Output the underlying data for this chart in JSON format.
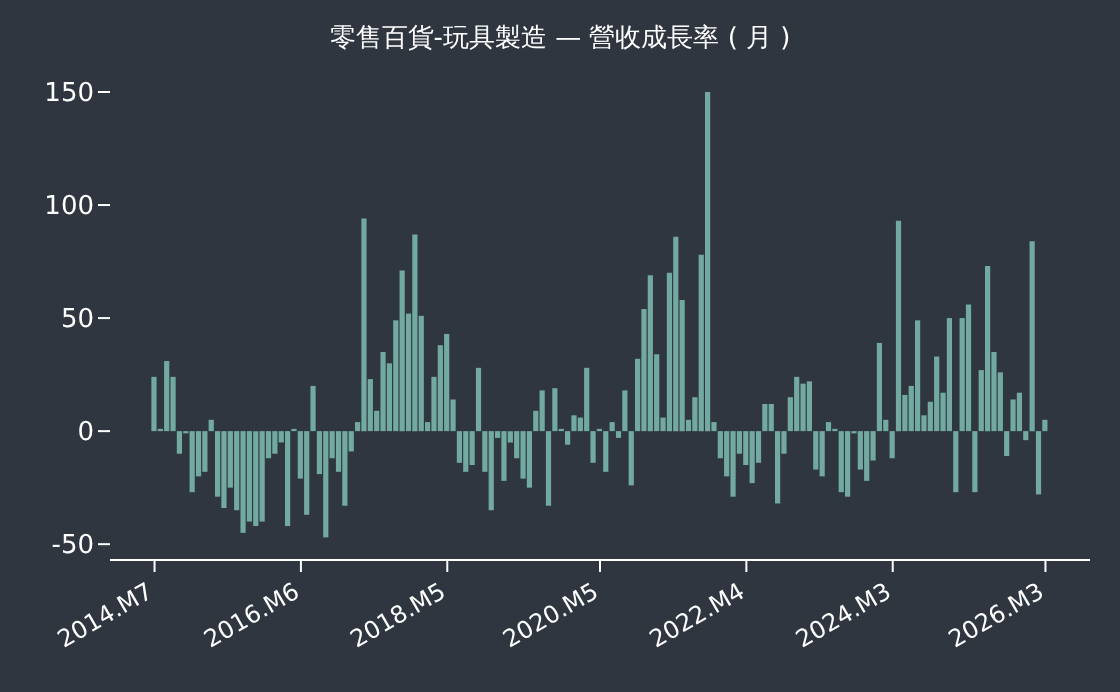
{
  "chart_data": {
    "type": "bar",
    "title": "零售百貨-玩具製造 — 營收成長率 ( 月 )",
    "color": "#72aaa1",
    "xlim": [
      "2013-12",
      "2026-10"
    ],
    "xticks": [
      {
        "value": "2014-07",
        "label": "2014.M7"
      },
      {
        "value": "2016-06",
        "label": "2016.M6"
      },
      {
        "value": "2018-05",
        "label": "2018.M5"
      },
      {
        "value": "2020-05",
        "label": "2020.M5"
      },
      {
        "value": "2022-04",
        "label": "2022.M4"
      },
      {
        "value": "2024-03",
        "label": "2024.M3"
      },
      {
        "value": "2026-03",
        "label": "2026.M3"
      }
    ],
    "ylim": [
      -57,
      150
    ],
    "yticks": [
      -50,
      0,
      50,
      100,
      150
    ],
    "grid": false,
    "legend": false,
    "x": [
      "2014-07",
      "2014-08",
      "2014-09",
      "2014-10",
      "2014-11",
      "2014-12",
      "2015-01",
      "2015-02",
      "2015-03",
      "2015-04",
      "2015-05",
      "2015-06",
      "2015-07",
      "2015-08",
      "2015-09",
      "2015-10",
      "2015-11",
      "2015-12",
      "2016-01",
      "2016-02",
      "2016-03",
      "2016-04",
      "2016-05",
      "2016-06",
      "2016-07",
      "2016-08",
      "2016-09",
      "2016-10",
      "2016-11",
      "2016-12",
      "2017-01",
      "2017-02",
      "2017-03",
      "2017-04",
      "2017-05",
      "2017-06",
      "2017-07",
      "2017-08",
      "2017-09",
      "2017-10",
      "2017-11",
      "2017-12",
      "2018-01",
      "2018-02",
      "2018-03",
      "2018-04",
      "2018-05",
      "2018-06",
      "2018-07",
      "2018-08",
      "2018-09",
      "2018-10",
      "2018-11",
      "2018-12",
      "2019-01",
      "2019-02",
      "2019-03",
      "2019-04",
      "2019-05",
      "2019-06",
      "2019-07",
      "2019-08",
      "2019-09",
      "2019-10",
      "2019-11",
      "2019-12",
      "2020-01",
      "2020-02",
      "2020-03",
      "2020-04",
      "2020-05",
      "2020-06",
      "2020-07",
      "2020-08",
      "2020-09",
      "2020-10",
      "2020-11",
      "2020-12",
      "2021-01",
      "2021-02",
      "2021-03",
      "2021-04",
      "2021-05",
      "2021-06",
      "2021-07",
      "2021-08",
      "2021-09",
      "2021-10",
      "2021-11",
      "2021-12",
      "2022-01",
      "2022-02",
      "2022-03",
      "2022-04",
      "2022-05",
      "2022-06",
      "2022-07",
      "2022-08",
      "2022-09",
      "2022-10",
      "2022-11",
      "2022-12",
      "2023-01",
      "2023-02",
      "2023-03",
      "2023-04",
      "2023-05",
      "2023-06",
      "2023-07",
      "2023-08",
      "2023-09",
      "2023-10",
      "2023-11",
      "2023-12",
      "2024-01",
      "2024-02",
      "2024-03",
      "2024-04",
      "2024-05",
      "2024-06",
      "2024-07",
      "2024-08",
      "2024-09",
      "2024-10",
      "2024-11",
      "2024-12",
      "2025-01",
      "2025-02",
      "2025-03",
      "2025-04",
      "2025-05",
      "2025-06",
      "2025-07",
      "2025-08",
      "2025-09",
      "2025-10",
      "2025-11",
      "2025-12",
      "2026-01",
      "2026-02",
      "2026-03"
    ],
    "values": [
      24,
      1,
      31,
      24,
      -10,
      -1,
      -27,
      -20,
      -18,
      5,
      -29,
      -34,
      -25,
      -35,
      -45,
      -40,
      -42,
      -40,
      -12,
      -10,
      -5,
      -42,
      1,
      -21,
      -37,
      20,
      -19,
      -47,
      -12,
      -18,
      -33,
      -9,
      4,
      94,
      23,
      9,
      35,
      30,
      49,
      71,
      52,
      87,
      51,
      4,
      24,
      38,
      43,
      14,
      -14,
      -18,
      -15,
      28,
      -18,
      -35,
      -3,
      -22,
      -5,
      -12,
      -21,
      -25,
      9,
      18,
      -33,
      19,
      1,
      -6,
      7,
      6,
      28,
      -14,
      1,
      -18,
      4,
      -3,
      18,
      -24,
      32,
      54,
      69,
      34,
      6,
      70,
      86,
      58,
      5,
      15,
      78,
      150,
      4,
      -12,
      -20,
      -29,
      -10,
      -15,
      -23,
      -14,
      12,
      12,
      -32,
      -10,
      15,
      24,
      21,
      22,
      -17,
      -20,
      4,
      1,
      -27,
      -29,
      -1,
      -17,
      -22,
      -13,
      39,
      5,
      -12,
      93,
      16,
      20,
      49,
      7,
      13,
      33,
      17,
      50,
      -27,
      50,
      56,
      -27,
      27,
      73,
      35,
      26,
      -11,
      14,
      17,
      -4,
      84,
      -28,
      5
    ]
  }
}
